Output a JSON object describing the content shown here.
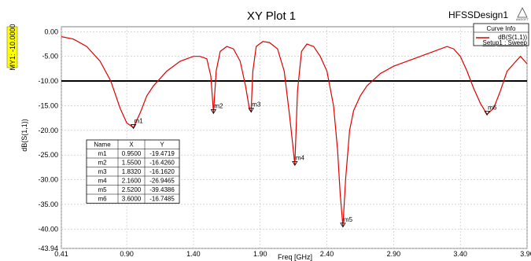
{
  "header": {
    "title": "XY Plot 1",
    "design": "HFSSDesign1",
    "logo_text": "ANSOFT"
  },
  "legend": {
    "title": "Curve Info",
    "series_label": "dB(S(1,1))",
    "setup_label": "Setup1 : Sweep"
  },
  "marker_line": {
    "label": "MY1: -10.0000",
    "value": -10
  },
  "marker_table": {
    "headers": [
      "Name",
      "X",
      "Y"
    ],
    "rows": [
      [
        "m1",
        "0.9500",
        "-19.4719"
      ],
      [
        "m2",
        "1.5500",
        "-16.4260"
      ],
      [
        "m3",
        "1.8320",
        "-16.1620"
      ],
      [
        "m4",
        "2.1600",
        "-26.9465"
      ],
      [
        "m5",
        "2.5200",
        "-39.4386"
      ],
      [
        "m6",
        "3.6000",
        "-16.7485"
      ]
    ]
  },
  "colors": {
    "curve": "#e00000",
    "marker_bg": "#ffff00",
    "grid": "#c0c0c0"
  },
  "chart_data": {
    "type": "line",
    "title": "XY Plot 1",
    "xlabel": "Freq [GHz]",
    "ylabel": "dB(S(1,1))",
    "xlim": [
      0.41,
      3.9
    ],
    "ylim": [
      -43.94,
      1.0
    ],
    "x_ticks": [
      "0.41",
      "0.90",
      "1.40",
      "1.90",
      "2.40",
      "2.90",
      "3.40",
      "3.90"
    ],
    "x_tick_values": [
      0.41,
      0.9,
      1.4,
      1.9,
      2.4,
      2.9,
      3.4,
      3.9
    ],
    "y_ticks": [
      "0.00",
      "-5.00",
      "-10.00",
      "-15.00",
      "-20.00",
      "-25.00",
      "-30.00",
      "-35.00",
      "-40.00",
      "-43.94"
    ],
    "y_tick_values": [
      0,
      -5,
      -10,
      -15,
      -20,
      -25,
      -30,
      -35,
      -40,
      -43.94
    ],
    "grid": true,
    "legend_position": "top-right",
    "series": [
      {
        "name": "dB(S(1,1))",
        "x": [
          0.41,
          0.5,
          0.6,
          0.7,
          0.78,
          0.85,
          0.9,
          0.95,
          1.0,
          1.05,
          1.1,
          1.2,
          1.3,
          1.4,
          1.45,
          1.5,
          1.53,
          1.55,
          1.57,
          1.6,
          1.65,
          1.7,
          1.75,
          1.79,
          1.82,
          1.832,
          1.845,
          1.87,
          1.92,
          1.97,
          2.03,
          2.08,
          2.12,
          2.14,
          2.16,
          2.18,
          2.21,
          2.25,
          2.3,
          2.35,
          2.4,
          2.45,
          2.48,
          2.5,
          2.52,
          2.54,
          2.57,
          2.6,
          2.65,
          2.7,
          2.8,
          2.9,
          3.0,
          3.1,
          3.2,
          3.3,
          3.35,
          3.4,
          3.45,
          3.5,
          3.55,
          3.6,
          3.65,
          3.7,
          3.75,
          3.8,
          3.85,
          3.9
        ],
        "y": [
          -1.0,
          -1.5,
          -3.0,
          -6.0,
          -10.0,
          -15.5,
          -18.5,
          -19.47,
          -16.5,
          -13.0,
          -11.0,
          -8.0,
          -6.0,
          -5.0,
          -5.0,
          -5.5,
          -9.0,
          -16.43,
          -8.0,
          -4.0,
          -3.0,
          -3.5,
          -6.0,
          -11.0,
          -15.8,
          -16.16,
          -8.0,
          -3.0,
          -2.0,
          -2.2,
          -3.5,
          -8.0,
          -17.0,
          -22.0,
          -26.95,
          -12.0,
          -4.0,
          -2.5,
          -3.0,
          -5.0,
          -8.0,
          -15.0,
          -24.0,
          -33.0,
          -39.44,
          -30.0,
          -20.0,
          -16.0,
          -13.0,
          -11.0,
          -8.5,
          -7.0,
          -6.0,
          -5.0,
          -4.0,
          -3.0,
          -3.5,
          -5.0,
          -8.0,
          -11.5,
          -14.5,
          -16.75,
          -15.5,
          -12.0,
          -8.0,
          -6.5,
          -5.0,
          -6.5
        ]
      }
    ],
    "markers": [
      {
        "name": "m1",
        "x": 0.95,
        "y": -19.4719
      },
      {
        "name": "m2",
        "x": 1.55,
        "y": -16.426
      },
      {
        "name": "m3",
        "x": 1.832,
        "y": -16.162
      },
      {
        "name": "m4",
        "x": 2.16,
        "y": -26.9465
      },
      {
        "name": "m5",
        "x": 2.52,
        "y": -39.4386
      },
      {
        "name": "m6",
        "x": 3.6,
        "y": -16.7485
      }
    ]
  }
}
